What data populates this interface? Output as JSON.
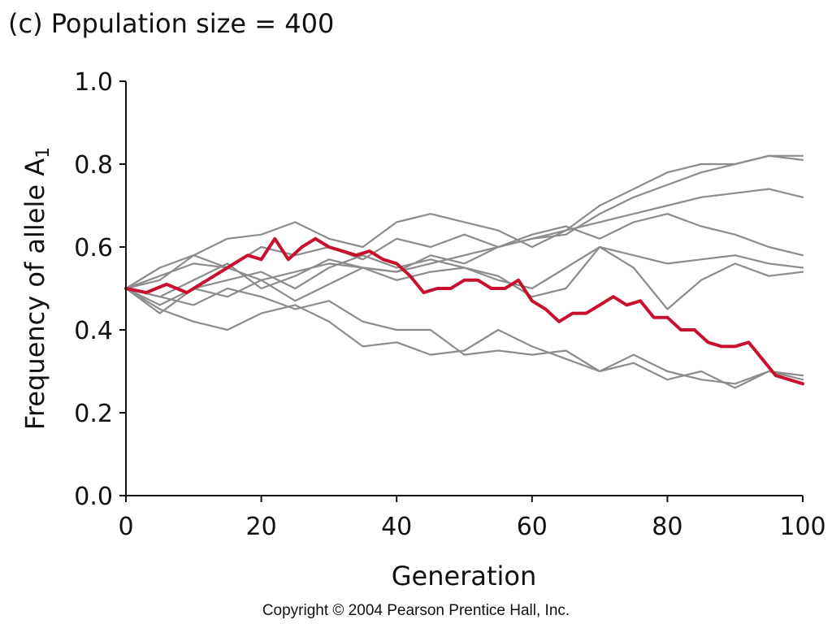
{
  "chart_data": {
    "type": "line",
    "title": "(c) Population size = 400",
    "xlabel": "Generation",
    "ylabel": "Frequency of allele A",
    "ylabel_subscript": "1",
    "xlim": [
      0,
      100
    ],
    "ylim": [
      0.0,
      1.0
    ],
    "x_ticks": [
      "0",
      "20",
      "40",
      "60",
      "80",
      "100"
    ],
    "y_ticks": [
      "0.0",
      "0.2",
      "0.4",
      "0.6",
      "0.8",
      "1.0"
    ],
    "grid": false,
    "legend": "none",
    "colors": {
      "gray": "#8c8c8c",
      "highlight": "#c8102e"
    },
    "series": [
      {
        "color": "gray",
        "x": [
          0,
          5,
          10,
          15,
          20,
          25,
          30,
          35,
          40,
          45,
          50,
          55,
          60,
          65,
          70,
          75,
          80,
          85,
          90,
          95,
          100
        ],
        "y": [
          0.5,
          0.55,
          0.58,
          0.62,
          0.63,
          0.66,
          0.62,
          0.6,
          0.66,
          0.68,
          0.66,
          0.64,
          0.6,
          0.64,
          0.7,
          0.74,
          0.78,
          0.8,
          0.8,
          0.82,
          0.81
        ]
      },
      {
        "color": "gray",
        "x": [
          0,
          5,
          10,
          15,
          20,
          25,
          30,
          35,
          40,
          45,
          50,
          55,
          60,
          65,
          70,
          75,
          80,
          85,
          90,
          95,
          100
        ],
        "y": [
          0.5,
          0.53,
          0.56,
          0.55,
          0.6,
          0.58,
          0.6,
          0.57,
          0.62,
          0.6,
          0.63,
          0.6,
          0.62,
          0.63,
          0.68,
          0.72,
          0.75,
          0.78,
          0.8,
          0.82,
          0.82
        ]
      },
      {
        "color": "gray",
        "x": [
          0,
          5,
          10,
          15,
          20,
          25,
          30,
          35,
          40,
          45,
          50,
          55,
          60,
          65,
          70,
          75,
          80,
          85,
          90,
          95,
          100
        ],
        "y": [
          0.5,
          0.52,
          0.58,
          0.55,
          0.52,
          0.54,
          0.56,
          0.55,
          0.54,
          0.56,
          0.58,
          0.6,
          0.62,
          0.64,
          0.66,
          0.68,
          0.7,
          0.72,
          0.73,
          0.74,
          0.72
        ]
      },
      {
        "color": "gray",
        "x": [
          0,
          5,
          10,
          15,
          20,
          25,
          30,
          35,
          40,
          45,
          50,
          55,
          60,
          65,
          70,
          75,
          80,
          85,
          90,
          95,
          100
        ],
        "y": [
          0.5,
          0.48,
          0.52,
          0.56,
          0.5,
          0.53,
          0.57,
          0.55,
          0.54,
          0.58,
          0.56,
          0.6,
          0.63,
          0.65,
          0.62,
          0.66,
          0.68,
          0.65,
          0.63,
          0.6,
          0.58
        ]
      },
      {
        "color": "gray",
        "x": [
          0,
          5,
          10,
          15,
          20,
          25,
          30,
          35,
          40,
          45,
          50,
          55,
          60,
          65,
          70,
          75,
          80,
          85,
          90,
          95,
          100
        ],
        "y": [
          0.5,
          0.46,
          0.5,
          0.52,
          0.54,
          0.5,
          0.55,
          0.58,
          0.55,
          0.57,
          0.55,
          0.52,
          0.5,
          0.55,
          0.6,
          0.58,
          0.56,
          0.57,
          0.58,
          0.56,
          0.55
        ]
      },
      {
        "color": "gray",
        "x": [
          0,
          5,
          10,
          15,
          20,
          25,
          30,
          35,
          40,
          45,
          50,
          55,
          60,
          65,
          70,
          75,
          80,
          85,
          90,
          95,
          100
        ],
        "y": [
          0.5,
          0.44,
          0.5,
          0.48,
          0.52,
          0.47,
          0.51,
          0.55,
          0.52,
          0.54,
          0.55,
          0.53,
          0.48,
          0.5,
          0.6,
          0.55,
          0.45,
          0.52,
          0.56,
          0.53,
          0.54
        ]
      },
      {
        "color": "gray",
        "x": [
          0,
          5,
          10,
          15,
          20,
          25,
          30,
          35,
          40,
          45,
          50,
          55,
          60,
          65,
          70,
          75,
          80,
          85,
          90,
          95,
          100
        ],
        "y": [
          0.5,
          0.45,
          0.42,
          0.4,
          0.44,
          0.46,
          0.42,
          0.36,
          0.37,
          0.34,
          0.35,
          0.4,
          0.36,
          0.33,
          0.3,
          0.34,
          0.3,
          0.28,
          0.27,
          0.3,
          0.29
        ]
      },
      {
        "color": "gray",
        "x": [
          0,
          5,
          10,
          15,
          20,
          25,
          30,
          35,
          40,
          45,
          50,
          55,
          60,
          65,
          70,
          75,
          80,
          85,
          90,
          95,
          100
        ],
        "y": [
          0.5,
          0.48,
          0.46,
          0.5,
          0.48,
          0.45,
          0.47,
          0.42,
          0.4,
          0.4,
          0.34,
          0.35,
          0.34,
          0.35,
          0.3,
          0.32,
          0.28,
          0.3,
          0.26,
          0.3,
          0.28
        ]
      },
      {
        "color": "highlight",
        "x": [
          0,
          3,
          6,
          9,
          12,
          15,
          18,
          20,
          22,
          24,
          26,
          28,
          30,
          32,
          34,
          36,
          38,
          40,
          42,
          44,
          46,
          48,
          50,
          52,
          54,
          56,
          58,
          60,
          62,
          64,
          66,
          68,
          70,
          72,
          74,
          76,
          78,
          80,
          82,
          84,
          86,
          88,
          90,
          92,
          94,
          96,
          98,
          100
        ],
        "y": [
          0.5,
          0.49,
          0.51,
          0.49,
          0.52,
          0.55,
          0.58,
          0.57,
          0.62,
          0.57,
          0.6,
          0.62,
          0.6,
          0.59,
          0.58,
          0.59,
          0.57,
          0.56,
          0.53,
          0.49,
          0.5,
          0.5,
          0.52,
          0.52,
          0.5,
          0.5,
          0.52,
          0.47,
          0.45,
          0.42,
          0.44,
          0.44,
          0.46,
          0.48,
          0.46,
          0.47,
          0.43,
          0.43,
          0.4,
          0.4,
          0.37,
          0.36,
          0.36,
          0.37,
          0.33,
          0.29,
          0.28,
          0.27
        ]
      }
    ]
  },
  "footer": {
    "copyright": "Copyright © 2004 Pearson Prentice Hall, Inc."
  }
}
